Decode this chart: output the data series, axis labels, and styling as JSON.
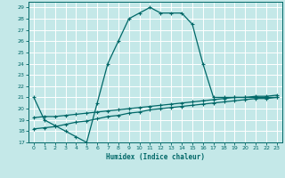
{
  "xlabel": "Humidex (Indice chaleur)",
  "bg_color": "#c4e8e8",
  "line_color": "#006868",
  "grid_color": "#ffffff",
  "xlim": [
    -0.5,
    23.5
  ],
  "ylim": [
    17,
    29.5
  ],
  "xticks": [
    0,
    1,
    2,
    3,
    4,
    5,
    6,
    7,
    8,
    9,
    10,
    11,
    12,
    13,
    14,
    15,
    16,
    17,
    18,
    19,
    20,
    21,
    22,
    23
  ],
  "yticks": [
    17,
    18,
    19,
    20,
    21,
    22,
    23,
    24,
    25,
    26,
    27,
    28,
    29
  ],
  "curve1_x": [
    0,
    1,
    2,
    3,
    4,
    5,
    6,
    7,
    8,
    9,
    10,
    11,
    12,
    13,
    14,
    15,
    16,
    17,
    18,
    19,
    20,
    21,
    22,
    23
  ],
  "curve1_y": [
    21,
    19,
    18.5,
    18,
    17.5,
    17,
    20.5,
    24,
    26,
    28,
    28.5,
    29,
    28.5,
    28.5,
    28.5,
    27.5,
    24,
    21,
    21,
    21.0,
    21.0,
    21.0,
    21.0,
    21.0
  ],
  "curve2_x": [
    0,
    1,
    2,
    3,
    4,
    5,
    6,
    7,
    8,
    9,
    10,
    11,
    12,
    13,
    14,
    15,
    16,
    17,
    18,
    19,
    20,
    21,
    22,
    23
  ],
  "curve2_y": [
    19.2,
    19.3,
    19.3,
    19.4,
    19.5,
    19.6,
    19.7,
    19.8,
    19.9,
    20.0,
    20.1,
    20.2,
    20.3,
    20.4,
    20.5,
    20.6,
    20.7,
    20.8,
    20.9,
    21.0,
    21.0,
    21.1,
    21.1,
    21.2
  ],
  "curve3_x": [
    0,
    1,
    2,
    3,
    4,
    5,
    6,
    7,
    8,
    9,
    10,
    11,
    12,
    13,
    14,
    15,
    16,
    17,
    18,
    19,
    20,
    21,
    22,
    23
  ],
  "curve3_y": [
    18.2,
    18.3,
    18.4,
    18.6,
    18.8,
    18.9,
    19.1,
    19.3,
    19.4,
    19.6,
    19.7,
    19.9,
    20.0,
    20.1,
    20.2,
    20.3,
    20.4,
    20.5,
    20.6,
    20.7,
    20.8,
    20.9,
    20.9,
    21.0
  ]
}
